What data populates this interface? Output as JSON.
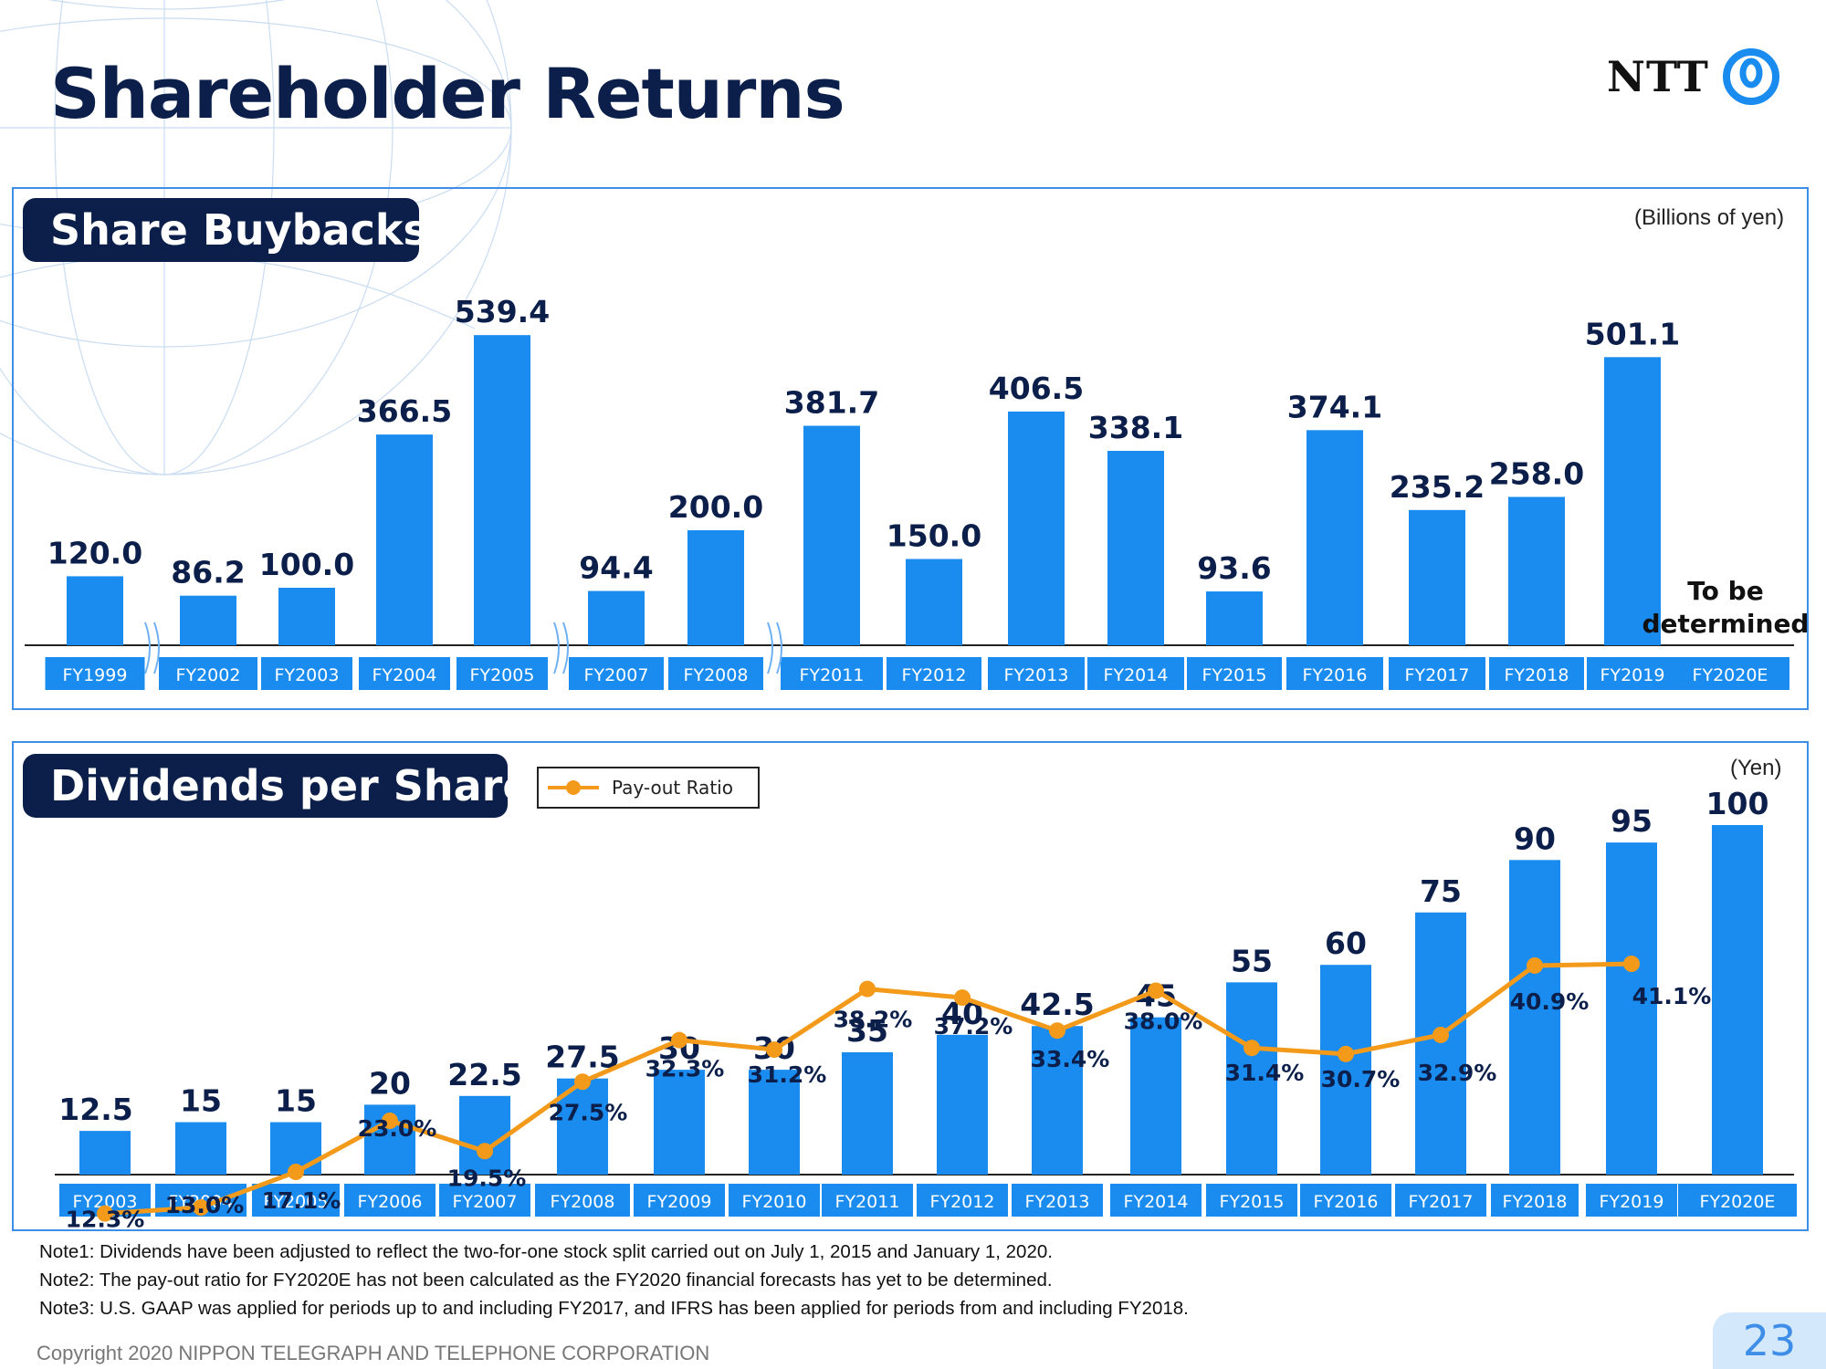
{
  "page": {
    "title": "Shareholder Returns",
    "logo_text": "NTT",
    "notes": [
      "Note1: Dividends have been adjusted to reflect the two-for-one stock split carried out on July 1, 2015 and  January 1, 2020.",
      "Note2: The pay-out ratio for FY2020E has not been calculated as the FY2020 financial forecasts has yet to be determined.",
      "Note3: U.S. GAAP was applied for periods up to and including FY2017, and IFRS has been applied for periods from and including FY2018."
    ],
    "copyright": "Copyright 2020 NIPPON TELEGRAPH AND TELEPHONE CORPORATION",
    "page_number": "23",
    "colors": {
      "bar": "#1a8cf0",
      "line": "#f39a1b",
      "navy": "#0b1f4a",
      "frame": "#3e8ee8"
    }
  },
  "chart_data": [
    {
      "type": "bar",
      "panel_title": "Share Buybacks",
      "unit": "(Billions of yen)",
      "categories": [
        "FY1999",
        "FY2002",
        "FY2003",
        "FY2004",
        "FY2005",
        "FY2007",
        "FY2008",
        "FY2011",
        "FY2012",
        "FY2013",
        "FY2014",
        "FY2015",
        "FY2016",
        "FY2017",
        "FY2018",
        "FY2019",
        "FY2020E"
      ],
      "values": [
        120.0,
        86.2,
        100.0,
        366.5,
        539.4,
        94.4,
        200.0,
        381.7,
        150.0,
        406.5,
        338.1,
        93.6,
        374.1,
        235.2,
        258.0,
        501.1,
        null
      ],
      "labels": [
        "120.0",
        "86.2",
        "100.0",
        "366.5",
        "539.4",
        "94.4",
        "200.0",
        "381.7",
        "150.0",
        "406.5",
        "338.1",
        "93.6",
        "374.1",
        "235.2",
        "258.0",
        "501.1",
        "To be determined"
      ],
      "axis_breaks_after": [
        "FY1999",
        "FY2005",
        "FY2008"
      ]
    },
    {
      "type": "bar",
      "panel_title": "Dividends per Share",
      "unit": "(Yen)",
      "categories": [
        "FY2003",
        "FY2004",
        "FY2005",
        "FY2006",
        "FY2007",
        "FY2008",
        "FY2009",
        "FY2010",
        "FY2011",
        "FY2012",
        "FY2013",
        "FY2014",
        "FY2015",
        "FY2016",
        "FY2017",
        "FY2018",
        "FY2019",
        "FY2020E"
      ],
      "values": [
        12.5,
        15,
        15,
        20,
        22.5,
        27.5,
        30,
        30,
        35,
        40,
        42.5,
        45,
        55,
        60,
        75,
        90,
        95,
        100
      ],
      "labels": [
        "12.5",
        "15",
        "15",
        "20",
        "22.5",
        "27.5",
        "30",
        "30",
        "35",
        "40",
        "42.5",
        "45",
        "55",
        "60",
        "75",
        "90",
        "95",
        "100"
      ],
      "line_series": {
        "name": "Pay-out Ratio",
        "values": [
          12.3,
          13.0,
          17.1,
          23.0,
          19.5,
          27.5,
          32.3,
          31.2,
          38.2,
          37.2,
          33.4,
          38.0,
          31.4,
          30.7,
          32.9,
          40.9,
          41.1,
          null
        ],
        "labels": [
          "12.3%",
          "13.0%",
          "17.1%",
          "23.0%",
          "19.5%",
          "27.5%",
          "32.3%",
          "31.2%",
          "38.2%",
          "37.2%",
          "33.4%",
          "38.0%",
          "31.4%",
          "30.7%",
          "32.9%",
          "40.9%",
          "41.1%",
          ""
        ]
      }
    }
  ]
}
